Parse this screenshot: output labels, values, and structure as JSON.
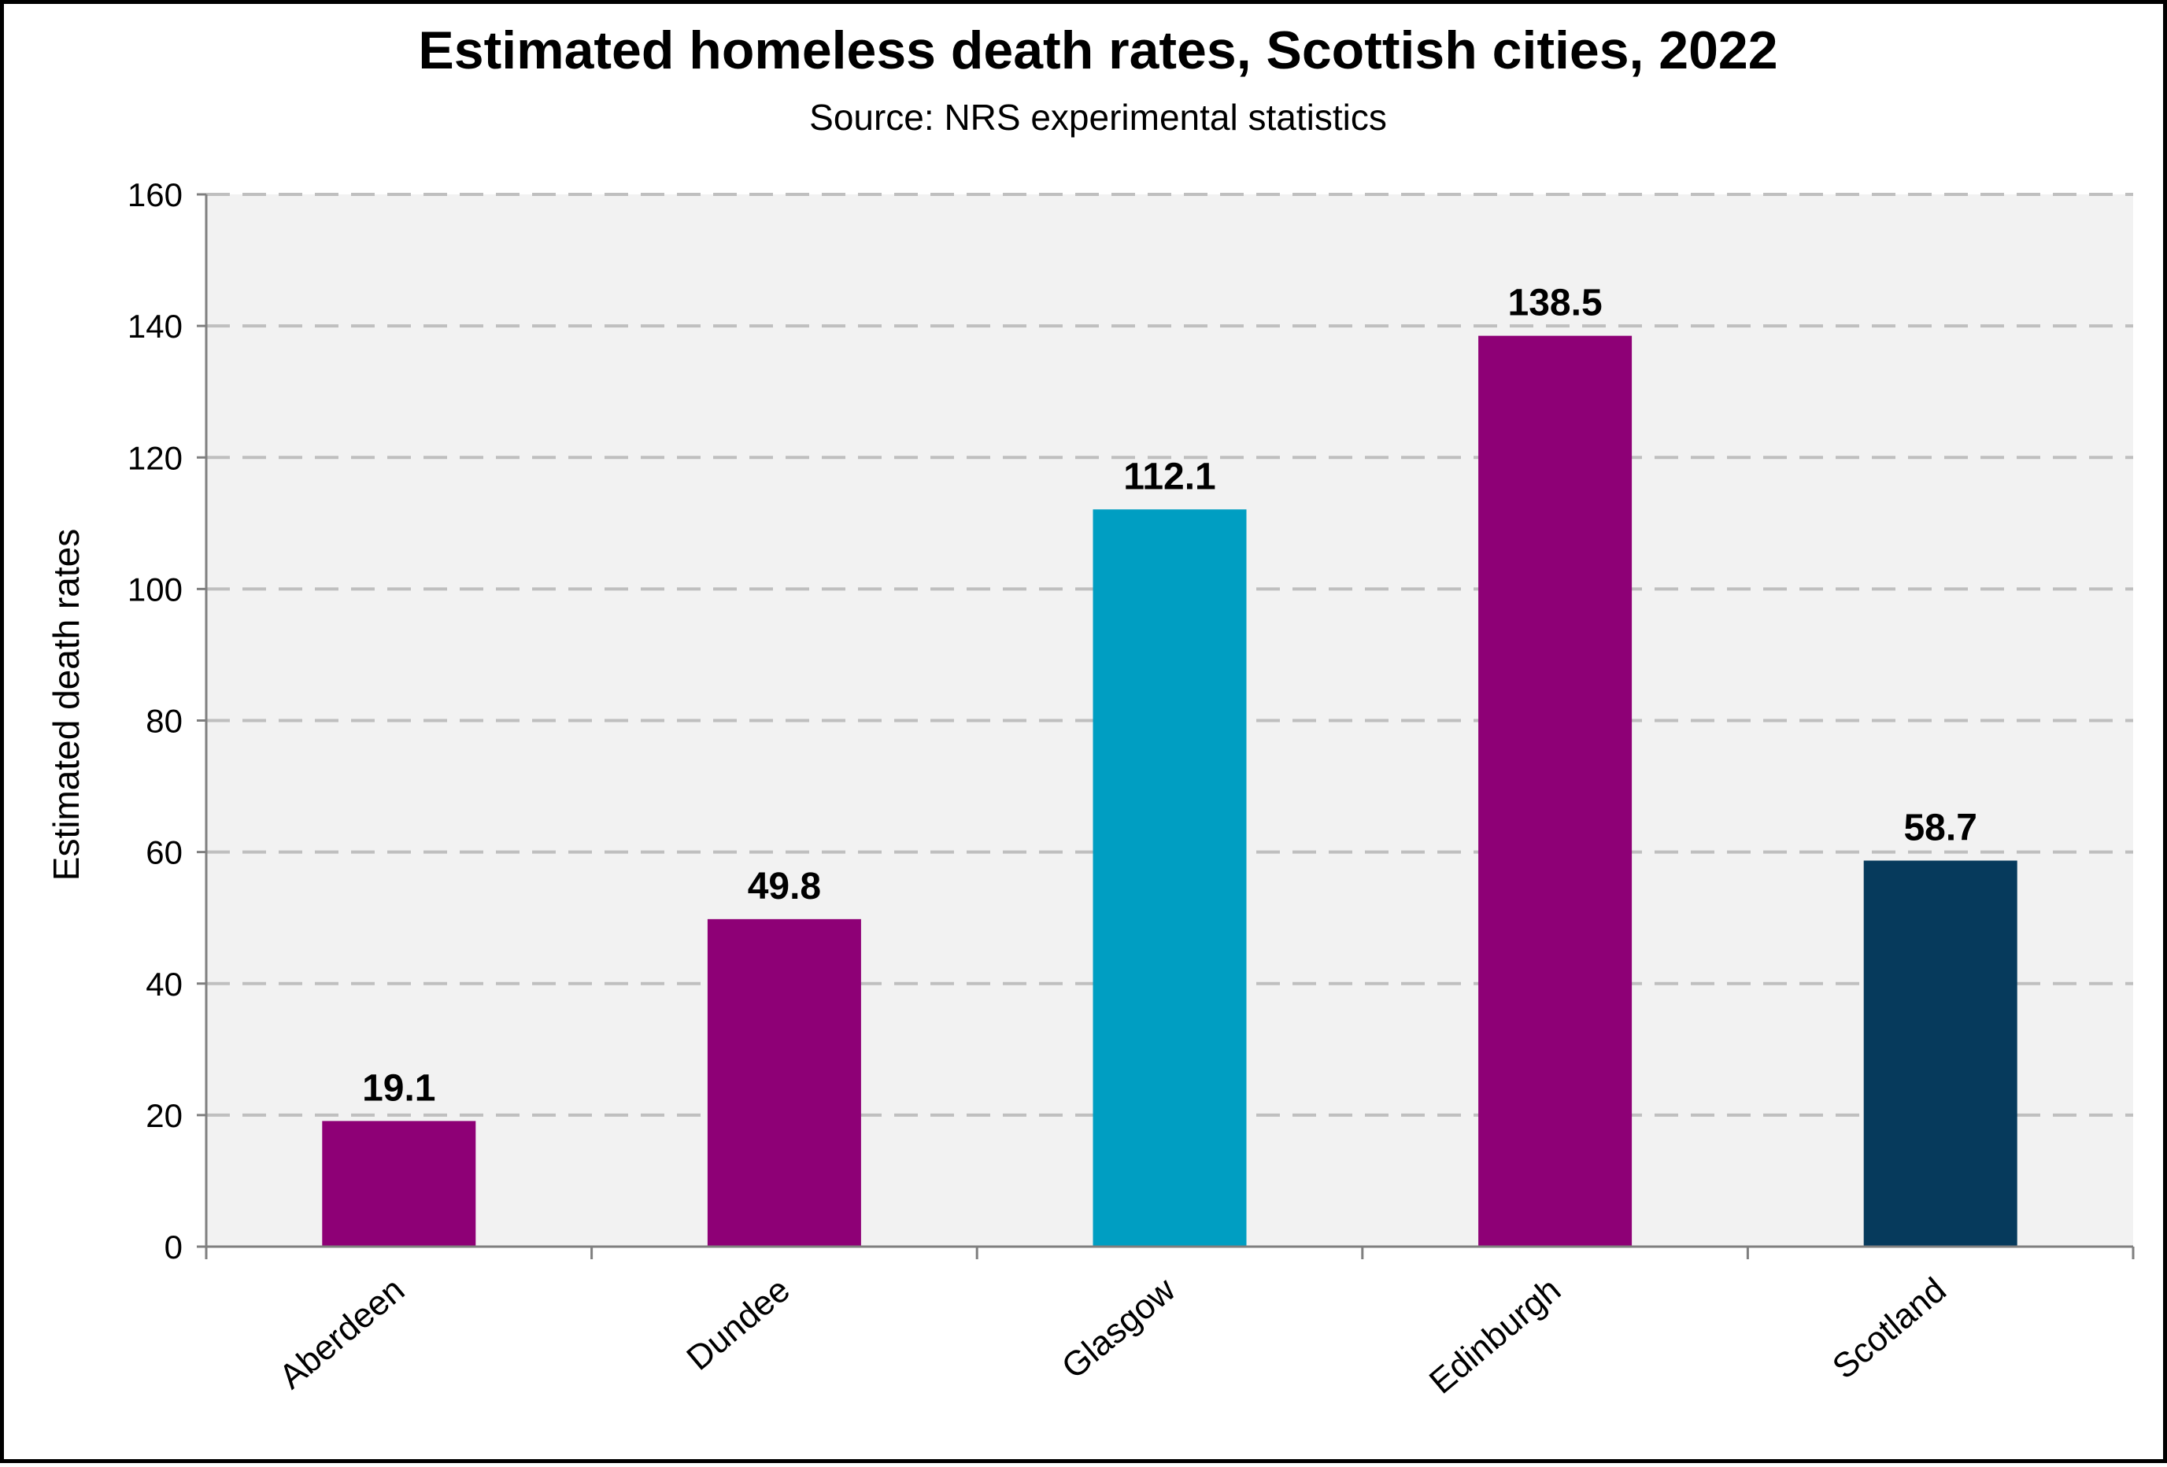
{
  "chart_data": {
    "type": "bar",
    "title": "Estimated homeless death rates, Scottish cities, 2022",
    "subtitle": "Source: NRS experimental statistics",
    "xlabel": "",
    "ylabel": "Estimated death rates",
    "ylim": [
      0,
      160
    ],
    "yticks": [
      0,
      20,
      40,
      60,
      80,
      100,
      120,
      140,
      160
    ],
    "grid": true,
    "categories": [
      "Aberdeen",
      "Dundee",
      "Glasgow",
      "Edinburgh",
      "Scotland"
    ],
    "values": [
      19.1,
      49.8,
      112.1,
      138.5,
      58.7
    ],
    "data_labels": [
      "19.1",
      "49.8",
      "112.1",
      "138.5",
      "58.7"
    ],
    "bar_colors": [
      "#8e0076",
      "#8e0076",
      "#009ec2",
      "#8e0076",
      "#063a5c"
    ],
    "plot_background": "#f2f2f2",
    "grid_color": "#bfbfbf"
  }
}
